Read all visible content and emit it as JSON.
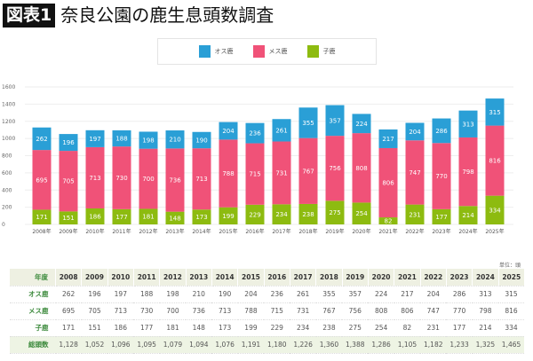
{
  "title": {
    "badge": "図表1",
    "text": "奈良公園の鹿生息頭数調査"
  },
  "colors": {
    "male": "#2a9fd6",
    "female": "#f05278",
    "fawn": "#8dbb10"
  },
  "chart_data": {
    "type": "bar",
    "stacked": true,
    "categories": [
      "2008年",
      "2009年",
      "2010年",
      "2011年",
      "2012年",
      "2013年",
      "2014年",
      "2015年",
      "2016年",
      "2017年",
      "2018年",
      "2019年",
      "2020年",
      "2021年",
      "2022年",
      "2023年",
      "2024年",
      "2025年"
    ],
    "series": [
      {
        "name": "子鹿",
        "values": [
          171,
          151,
          186,
          177,
          181,
          148,
          173,
          199,
          229,
          234,
          238,
          275,
          254,
          82,
          231,
          177,
          214,
          334
        ]
      },
      {
        "name": "メス鹿",
        "values": [
          695,
          705,
          713,
          730,
          700,
          736,
          713,
          788,
          715,
          731,
          767,
          756,
          808,
          806,
          747,
          770,
          798,
          816
        ]
      },
      {
        "name": "オス鹿",
        "values": [
          262,
          196,
          197,
          188,
          198,
          210,
          190,
          204,
          236,
          261,
          355,
          357,
          224,
          217,
          204,
          286,
          313,
          315
        ]
      }
    ],
    "ylim": [
      0,
      1600
    ],
    "yticks": [
      0,
      200,
      400,
      600,
      800,
      1000,
      1200,
      1400,
      1600
    ],
    "grid": true,
    "legend": "top-center",
    "legend_order": [
      "オス鹿",
      "メス鹿",
      "子鹿"
    ]
  },
  "table": {
    "unit": "単位：頭",
    "header_label": "年度",
    "years": [
      "2008",
      "2009",
      "2010",
      "2011",
      "2012",
      "2013",
      "2014",
      "2015",
      "2016",
      "2017",
      "2018",
      "2019",
      "2020",
      "2021",
      "2022",
      "2023",
      "2024",
      "2025"
    ],
    "rows": [
      {
        "label": "オス鹿",
        "values": [
          "262",
          "196",
          "197",
          "188",
          "198",
          "210",
          "190",
          "204",
          "236",
          "261",
          "355",
          "357",
          "224",
          "217",
          "204",
          "286",
          "313",
          "315"
        ]
      },
      {
        "label": "メス鹿",
        "values": [
          "695",
          "705",
          "713",
          "730",
          "700",
          "736",
          "713",
          "788",
          "715",
          "731",
          "767",
          "756",
          "808",
          "806",
          "747",
          "770",
          "798",
          "816"
        ]
      },
      {
        "label": "子鹿",
        "values": [
          "171",
          "151",
          "186",
          "177",
          "181",
          "148",
          "173",
          "199",
          "229",
          "234",
          "238",
          "275",
          "254",
          "82",
          "231",
          "177",
          "214",
          "334"
        ]
      },
      {
        "label": "総頭数",
        "values": [
          "1,128",
          "1,052",
          "1,096",
          "1,095",
          "1,079",
          "1,094",
          "1,076",
          "1,191",
          "1,180",
          "1,226",
          "1,360",
          "1,388",
          "1,286",
          "1,105",
          "1,182",
          "1,233",
          "1,325",
          "1,465"
        ]
      }
    ]
  }
}
